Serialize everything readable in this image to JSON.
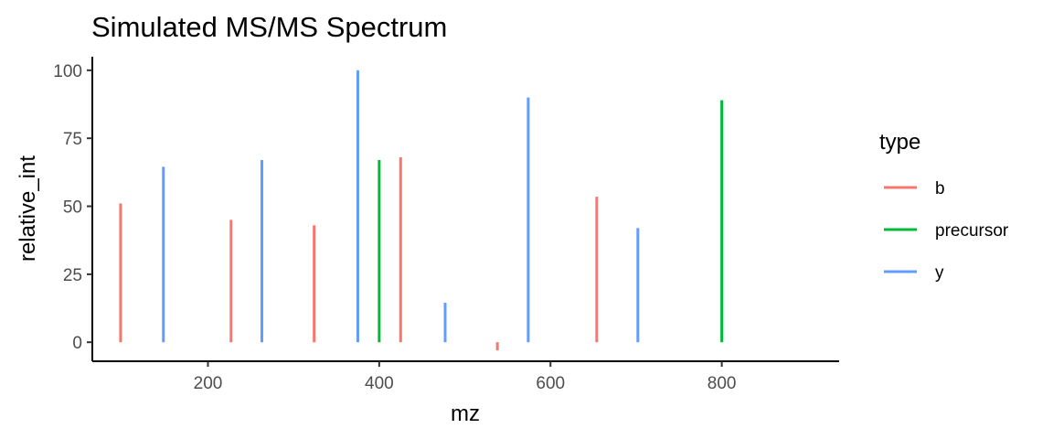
{
  "chart_data": {
    "type": "bar",
    "title": "Simulated MS/MS Spectrum",
    "xlabel": "mz",
    "ylabel": "relative_int",
    "xlim": [
      65,
      937
    ],
    "ylim": [
      -7,
      105
    ],
    "x_ticks": [
      200,
      400,
      600,
      800
    ],
    "y_ticks": [
      0,
      25,
      50,
      75,
      100
    ],
    "grid": false,
    "legend": {
      "title": "type",
      "placement": "right",
      "entries": [
        {
          "label": "b",
          "color": "#F8766D"
        },
        {
          "label": "precursor",
          "color": "#00BA38"
        },
        {
          "label": "y",
          "color": "#619CFF"
        }
      ]
    },
    "series": [
      {
        "type_key": "b",
        "color": "#F8766D",
        "points": [
          {
            "x": 98,
            "y": 51
          },
          {
            "x": 227,
            "y": 45
          },
          {
            "x": 324,
            "y": 43
          },
          {
            "x": 425,
            "y": 68
          },
          {
            "x": 538,
            "y": -3
          },
          {
            "x": 654,
            "y": 53.5
          }
        ]
      },
      {
        "type_key": "precursor",
        "color": "#00BA38",
        "points": [
          {
            "x": 400,
            "y": 67
          },
          {
            "x": 800,
            "y": 89
          }
        ]
      },
      {
        "type_key": "y",
        "color": "#619CFF",
        "points": [
          {
            "x": 148,
            "y": 64.5
          },
          {
            "x": 263,
            "y": 67
          },
          {
            "x": 375,
            "y": 100
          },
          {
            "x": 477,
            "y": 14.5
          },
          {
            "x": 574,
            "y": 90
          },
          {
            "x": 702,
            "y": 42
          }
        ]
      }
    ]
  }
}
